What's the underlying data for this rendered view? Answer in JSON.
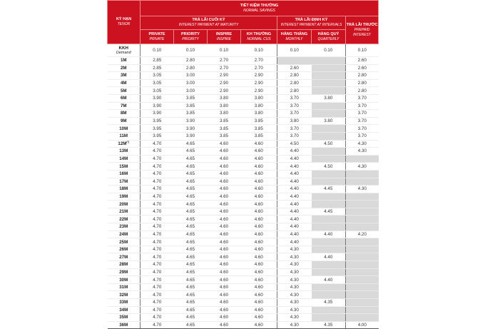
{
  "header": {
    "tenor": "KỲ HẠN",
    "tenor_en": "TENOR",
    "group": "TIẾT KIỆM THƯỜNG",
    "group_en": "NORMAL SAVINGS",
    "maturity": "TRẢ LÃI CUỐI KỲ",
    "maturity_en": "INTEREST PAYMENT AT MATURITY",
    "intervals": "TRẢ LÃI ĐỊNH KỲ",
    "intervals_en": "INTEREST PAYMENT AT INTERVALS",
    "prepaid": "TRẢ LÃI TRƯỚC",
    "prepaid_en": "PREPAID INTEREST",
    "columns": [
      {
        "vi": "PRIVATE",
        "en": "PRIVATE"
      },
      {
        "vi": "PRIORITY",
        "en": "PRIORITY"
      },
      {
        "vi": "INSPIRE",
        "en": "INSPIRE"
      },
      {
        "vi": "KH THƯỜNG",
        "en": "NORMAL CUS"
      },
      {
        "vi": "HÀNG THÁNG",
        "en": "MONTHLY"
      },
      {
        "vi": "HÀNG QUÝ",
        "en": "QUARTERLY"
      }
    ]
  },
  "colors": {
    "header": "#cc1120",
    "empty_cell": "#d9d9d9"
  },
  "rows": [
    {
      "tenor": "KKH",
      "sub": "Demand",
      "v": [
        "0.10",
        "0.10",
        "0.10",
        "0.10",
        "0.10",
        "0.10",
        "0.10"
      ]
    },
    {
      "tenor": "1M",
      "v": [
        "2.85",
        "2.80",
        "2.70",
        "2.70",
        null,
        null,
        "2.60"
      ]
    },
    {
      "tenor": "2M",
      "v": [
        "2.85",
        "2.80",
        "2.70",
        "2.70",
        "2.60",
        null,
        "2.60"
      ]
    },
    {
      "tenor": "3M",
      "v": [
        "3.05",
        "3.00",
        "2.90",
        "2.90",
        "2.80",
        null,
        "2.80"
      ]
    },
    {
      "tenor": "4M",
      "v": [
        "3.05",
        "3.00",
        "2.90",
        "2.90",
        "2.80",
        null,
        "2.80"
      ]
    },
    {
      "tenor": "5M",
      "v": [
        "3.05",
        "3.00",
        "2.90",
        "2.90",
        "2.80",
        null,
        "2.80"
      ]
    },
    {
      "tenor": "6M",
      "v": [
        "3.90",
        "3.85",
        "3.80",
        "3.80",
        "3.70",
        "3.80",
        "3.70"
      ]
    },
    {
      "tenor": "7M",
      "v": [
        "3.90",
        "3.85",
        "3.80",
        "3.80",
        "3.70",
        null,
        "3.70"
      ]
    },
    {
      "tenor": "8M",
      "v": [
        "3.90",
        "3.85",
        "3.80",
        "3.80",
        "3.70",
        null,
        "3.70"
      ]
    },
    {
      "tenor": "9M",
      "v": [
        "3.95",
        "3.90",
        "3.85",
        "3.85",
        "3.80",
        "3.80",
        "3.70"
      ]
    },
    {
      "tenor": "10M",
      "v": [
        "3.95",
        "3.90",
        "3.85",
        "3.85",
        "3.70",
        null,
        "3.70"
      ]
    },
    {
      "tenor": "11M",
      "v": [
        "3.95",
        "3.90",
        "3.85",
        "3.85",
        "3.70",
        null,
        "3.70"
      ]
    },
    {
      "tenor": "12M",
      "note": "(*)",
      "v": [
        "4.70",
        "4.65",
        "4.60",
        "4.60",
        "4.50",
        "4.50",
        "4.30"
      ]
    },
    {
      "tenor": "13M",
      "v": [
        "4.70",
        "4.65",
        "4.60",
        "4.60",
        "4.40",
        null,
        "4.30"
      ]
    },
    {
      "tenor": "14M",
      "v": [
        "4.70",
        "4.65",
        "4.60",
        "4.60",
        "4.40",
        null,
        null
      ]
    },
    {
      "tenor": "15M",
      "v": [
        "4.70",
        "4.65",
        "4.60",
        "4.60",
        "4.40",
        "4.50",
        "4.30"
      ]
    },
    {
      "tenor": "16M",
      "v": [
        "4.70",
        "4.65",
        "4.60",
        "4.60",
        "4.40",
        null,
        null
      ]
    },
    {
      "tenor": "17M",
      "v": [
        "4.70",
        "4.65",
        "4.60",
        "4.60",
        "4.40",
        null,
        null
      ]
    },
    {
      "tenor": "18M",
      "v": [
        "4.70",
        "4.65",
        "4.60",
        "4.60",
        "4.40",
        "4.45",
        "4.30"
      ]
    },
    {
      "tenor": "19M",
      "v": [
        "4.70",
        "4.65",
        "4.60",
        "4.60",
        "4.40",
        null,
        null
      ]
    },
    {
      "tenor": "20M",
      "v": [
        "4.70",
        "4.65",
        "4.60",
        "4.60",
        "4.40",
        null,
        null
      ]
    },
    {
      "tenor": "21M",
      "v": [
        "4.70",
        "4.65",
        "4.60",
        "4.60",
        "4.40",
        "4.45",
        null
      ]
    },
    {
      "tenor": "22M",
      "v": [
        "4.70",
        "4.65",
        "4.60",
        "4.60",
        "4.40",
        null,
        null
      ]
    },
    {
      "tenor": "23M",
      "v": [
        "4.70",
        "4.65",
        "4.60",
        "4.60",
        "4.40",
        null,
        null
      ]
    },
    {
      "tenor": "24M",
      "v": [
        "4.70",
        "4.65",
        "4.60",
        "4.60",
        "4.40",
        "4.40",
        "4.20"
      ]
    },
    {
      "tenor": "25M",
      "v": [
        "4.70",
        "4.65",
        "4.60",
        "4.60",
        "4.40",
        null,
        null
      ]
    },
    {
      "tenor": "26M",
      "v": [
        "4.70",
        "4.65",
        "4.60",
        "4.60",
        "4.30",
        null,
        null
      ]
    },
    {
      "tenor": "27M",
      "v": [
        "4.70",
        "4.65",
        "4.60",
        "4.60",
        "4.30",
        "4.40",
        null
      ]
    },
    {
      "tenor": "28M",
      "v": [
        "4.70",
        "4.65",
        "4.60",
        "4.60",
        "4.30",
        null,
        null
      ]
    },
    {
      "tenor": "29M",
      "v": [
        "4.70",
        "4.65",
        "4.60",
        "4.60",
        "4.30",
        null,
        null
      ]
    },
    {
      "tenor": "30M",
      "v": [
        "4.70",
        "4.65",
        "4.60",
        "4.60",
        "4.30",
        "4.40",
        null
      ]
    },
    {
      "tenor": "31M",
      "v": [
        "4.70",
        "4.65",
        "4.60",
        "4.60",
        "4.30",
        null,
        null
      ]
    },
    {
      "tenor": "32M",
      "v": [
        "4.70",
        "4.65",
        "4.60",
        "4.60",
        "4.30",
        null,
        null
      ]
    },
    {
      "tenor": "33M",
      "v": [
        "4.70",
        "4.65",
        "4.60",
        "4.60",
        "4.30",
        "4.35",
        null
      ]
    },
    {
      "tenor": "34M",
      "v": [
        "4.70",
        "4.65",
        "4.60",
        "4.60",
        "4.30",
        null,
        null
      ]
    },
    {
      "tenor": "35M",
      "v": [
        "4.70",
        "4.65",
        "4.60",
        "4.60",
        "4.30",
        null,
        null
      ]
    },
    {
      "tenor": "36M",
      "v": [
        "4.70",
        "4.65",
        "4.60",
        "4.60",
        "4.30",
        "4.35",
        "4.00"
      ]
    }
  ]
}
